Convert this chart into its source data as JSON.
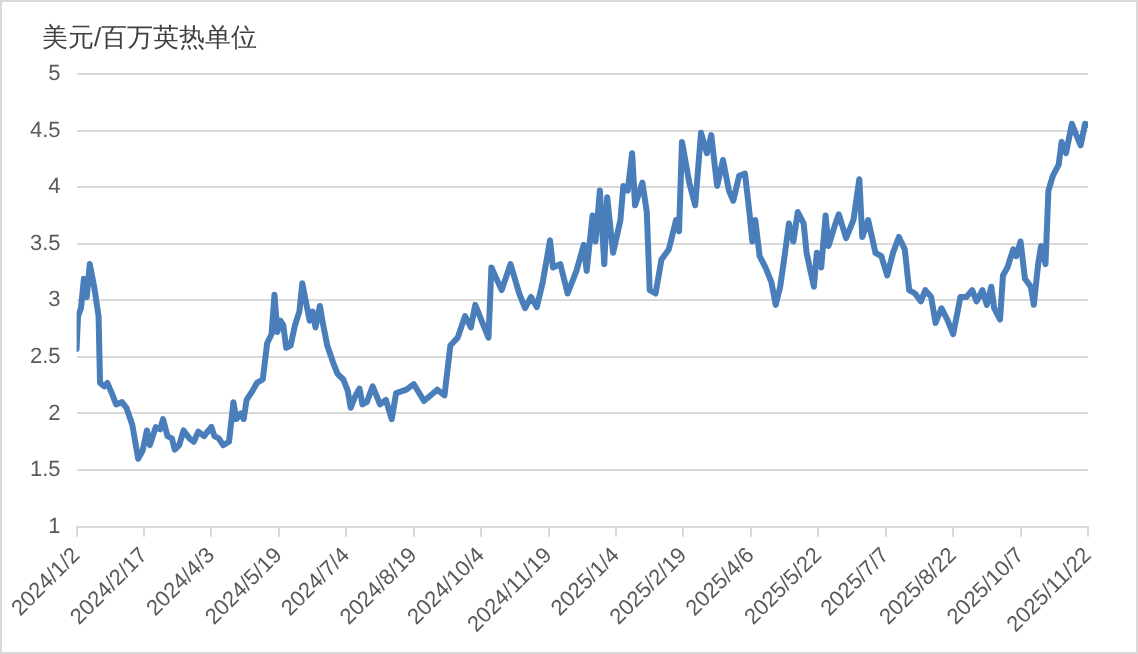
{
  "chart_data": {
    "type": "line",
    "ylabel": "美元/百万英热单位",
    "x": [
      "2024-01-02",
      "2024-01-03",
      "2024-01-05",
      "2024-01-07",
      "2024-01-09",
      "2024-01-11",
      "2024-01-14",
      "2024-01-17",
      "2024-01-18",
      "2024-01-21",
      "2024-01-23",
      "2024-01-26",
      "2024-01-29",
      "2024-02-02",
      "2024-02-05",
      "2024-02-09",
      "2024-02-13",
      "2024-02-16",
      "2024-02-19",
      "2024-02-21",
      "2024-02-25",
      "2024-02-28",
      "2024-03-01",
      "2024-03-04",
      "2024-03-07",
      "2024-03-09",
      "2024-03-12",
      "2024-03-15",
      "2024-03-19",
      "2024-03-22",
      "2024-03-25",
      "2024-03-29",
      "2024-04-01",
      "2024-04-03",
      "2024-04-05",
      "2024-04-08",
      "2024-04-11",
      "2024-04-15",
      "2024-04-18",
      "2024-04-20",
      "2024-04-23",
      "2024-04-25",
      "2024-04-27",
      "2024-05-01",
      "2024-05-04",
      "2024-05-08",
      "2024-05-11",
      "2024-05-14",
      "2024-05-16",
      "2024-05-18",
      "2024-05-20",
      "2024-05-22",
      "2024-05-24",
      "2024-05-27",
      "2024-05-30",
      "2024-06-02",
      "2024-06-04",
      "2024-06-07",
      "2024-06-09",
      "2024-06-11",
      "2024-06-13",
      "2024-06-16",
      "2024-06-18",
      "2024-06-21",
      "2024-06-25",
      "2024-06-28",
      "2024-07-02",
      "2024-07-05",
      "2024-07-07",
      "2024-07-10",
      "2024-07-13",
      "2024-07-15",
      "2024-07-18",
      "2024-07-22",
      "2024-07-27",
      "2024-07-31",
      "2024-08-04",
      "2024-08-07",
      "2024-08-14",
      "2024-08-19",
      "2024-08-26",
      "2024-09-04",
      "2024-09-09",
      "2024-09-13",
      "2024-09-18",
      "2024-09-23",
      "2024-09-27",
      "2024-09-30",
      "2024-10-04",
      "2024-10-09",
      "2024-10-11",
      "2024-10-18",
      "2024-10-24",
      "2024-10-30",
      "2024-11-03",
      "2024-11-07",
      "2024-11-11",
      "2024-11-15",
      "2024-11-20",
      "2024-11-22",
      "2024-11-27",
      "2024-12-02",
      "2024-12-08",
      "2024-12-13",
      "2024-12-15",
      "2024-12-19",
      "2024-12-21",
      "2024-12-24",
      "2024-12-27",
      "2024-12-29",
      "2025-01-02",
      "2025-01-07",
      "2025-01-09",
      "2025-01-12",
      "2025-01-15",
      "2025-01-17",
      "2025-01-22",
      "2025-01-25",
      "2025-01-27",
      "2025-01-31",
      "2025-02-04",
      "2025-02-09",
      "2025-02-14",
      "2025-02-16",
      "2025-02-18",
      "2025-02-23",
      "2025-02-27",
      "2025-03-03",
      "2025-03-07",
      "2025-03-10",
      "2025-03-14",
      "2025-03-18",
      "2025-03-22",
      "2025-03-25",
      "2025-03-29",
      "2025-04-02",
      "2025-04-05",
      "2025-04-07",
      "2025-04-09",
      "2025-04-12",
      "2025-04-16",
      "2025-04-20",
      "2025-04-23",
      "2025-04-26",
      "2025-04-29",
      "2025-05-02",
      "2025-05-05",
      "2025-05-08",
      "2025-05-12",
      "2025-05-14",
      "2025-05-19",
      "2025-05-21",
      "2025-05-24",
      "2025-05-27",
      "2025-05-29",
      "2025-06-02",
      "2025-06-05",
      "2025-06-10",
      "2025-06-15",
      "2025-06-19",
      "2025-06-21",
      "2025-06-25",
      "2025-06-30",
      "2025-07-04",
      "2025-07-08",
      "2025-07-12",
      "2025-07-16",
      "2025-07-20",
      "2025-07-23",
      "2025-07-27",
      "2025-07-31",
      "2025-08-03",
      "2025-08-07",
      "2025-08-10",
      "2025-08-14",
      "2025-08-18",
      "2025-08-22",
      "2025-08-27",
      "2025-08-31",
      "2025-09-04",
      "2025-09-07",
      "2025-09-11",
      "2025-09-14",
      "2025-09-17",
      "2025-09-19",
      "2025-09-23",
      "2025-09-25",
      "2025-09-28",
      "2025-10-02",
      "2025-10-04",
      "2025-10-07",
      "2025-10-10",
      "2025-10-14",
      "2025-10-16",
      "2025-10-19",
      "2025-10-21",
      "2025-10-24",
      "2025-10-26",
      "2025-10-29",
      "2025-11-02",
      "2025-11-04",
      "2025-11-07",
      "2025-11-11",
      "2025-11-14",
      "2025-11-17",
      "2025-11-20",
      "2025-11-22"
    ],
    "series": [
      {
        "color": "#4a7ebb",
        "values": [
          2.57,
          2.86,
          2.93,
          3.19,
          3.03,
          3.32,
          3.12,
          2.86,
          2.27,
          2.24,
          2.27,
          2.18,
          2.08,
          2.1,
          2.05,
          1.9,
          1.6,
          1.67,
          1.85,
          1.72,
          1.88,
          1.86,
          1.95,
          1.8,
          1.78,
          1.68,
          1.72,
          1.85,
          1.78,
          1.75,
          1.84,
          1.8,
          1.85,
          1.88,
          1.8,
          1.78,
          1.72,
          1.75,
          2.1,
          1.95,
          2.0,
          1.95,
          2.12,
          2.2,
          2.27,
          2.3,
          2.62,
          2.7,
          3.05,
          2.72,
          2.82,
          2.78,
          2.58,
          2.6,
          2.78,
          2.9,
          3.15,
          2.95,
          2.82,
          2.9,
          2.76,
          2.95,
          2.8,
          2.6,
          2.45,
          2.35,
          2.3,
          2.2,
          2.05,
          2.15,
          2.22,
          2.08,
          2.1,
          2.24,
          2.08,
          2.12,
          1.95,
          2.18,
          2.21,
          2.26,
          2.11,
          2.21,
          2.16,
          2.6,
          2.67,
          2.86,
          2.76,
          2.96,
          2.83,
          2.67,
          3.29,
          3.09,
          3.32,
          3.06,
          2.93,
          3.03,
          2.94,
          3.16,
          3.53,
          3.29,
          3.32,
          3.06,
          3.26,
          3.49,
          3.26,
          3.75,
          3.52,
          3.97,
          3.32,
          3.91,
          3.42,
          3.71,
          4.01,
          3.97,
          4.3,
          3.84,
          4.04,
          3.78,
          3.09,
          3.06,
          3.36,
          3.45,
          3.71,
          3.61,
          4.4,
          4.04,
          3.84,
          4.48,
          4.3,
          4.46,
          4.01,
          4.24,
          3.97,
          3.88,
          4.1,
          4.12,
          3.78,
          3.52,
          3.71,
          3.39,
          3.29,
          3.16,
          2.96,
          3.12,
          3.39,
          3.68,
          3.52,
          3.78,
          3.68,
          3.42,
          3.12,
          3.42,
          3.29,
          3.75,
          3.48,
          3.65,
          3.76,
          3.55,
          3.71,
          4.07,
          3.56,
          3.71,
          3.42,
          3.39,
          3.22,
          3.42,
          3.56,
          3.45,
          3.09,
          3.06,
          2.99,
          3.09,
          3.03,
          2.8,
          2.93,
          2.83,
          2.7,
          3.03,
          3.03,
          3.09,
          2.99,
          3.09,
          2.96,
          3.12,
          2.93,
          2.83,
          3.22,
          3.29,
          3.45,
          3.39,
          3.52,
          3.19,
          3.12,
          2.96,
          3.32,
          3.48,
          3.32,
          3.97,
          4.1,
          4.2,
          4.4,
          4.3,
          4.56,
          4.46,
          4.37,
          4.56,
          4.55
        ]
      }
    ],
    "xlim": [
      "2024-01-02",
      "2025-11-22"
    ],
    "xticks": [
      {
        "value": "2024-01-02",
        "label": "2024/1/2"
      },
      {
        "value": "2024-02-17",
        "label": "2024/2/17"
      },
      {
        "value": "2024-04-03",
        "label": "2024/4/3"
      },
      {
        "value": "2024-05-19",
        "label": "2024/5/19"
      },
      {
        "value": "2024-07-04",
        "label": "2024/7/4"
      },
      {
        "value": "2024-08-19",
        "label": "2024/8/19"
      },
      {
        "value": "2024-10-04",
        "label": "2024/10/4"
      },
      {
        "value": "2024-11-19",
        "label": "2024/11/19"
      },
      {
        "value": "2025-01-04",
        "label": "2025/1/4"
      },
      {
        "value": "2025-02-19",
        "label": "2025/2/19"
      },
      {
        "value": "2025-04-06",
        "label": "2025/4/6"
      },
      {
        "value": "2025-05-22",
        "label": "2025/5/22"
      },
      {
        "value": "2025-07-07",
        "label": "2025/7/7"
      },
      {
        "value": "2025-08-22",
        "label": "2025/8/22"
      },
      {
        "value": "2025-10-07",
        "label": "2025/10/7"
      },
      {
        "value": "2025-11-22",
        "label": "2025/11/22"
      }
    ],
    "ylim": [
      1,
      5
    ],
    "yticks": [
      1,
      1.5,
      2,
      2.5,
      3,
      3.5,
      4,
      4.5,
      5
    ],
    "grid": "y",
    "legend": false,
    "marker": "none",
    "line_style": "solid"
  }
}
